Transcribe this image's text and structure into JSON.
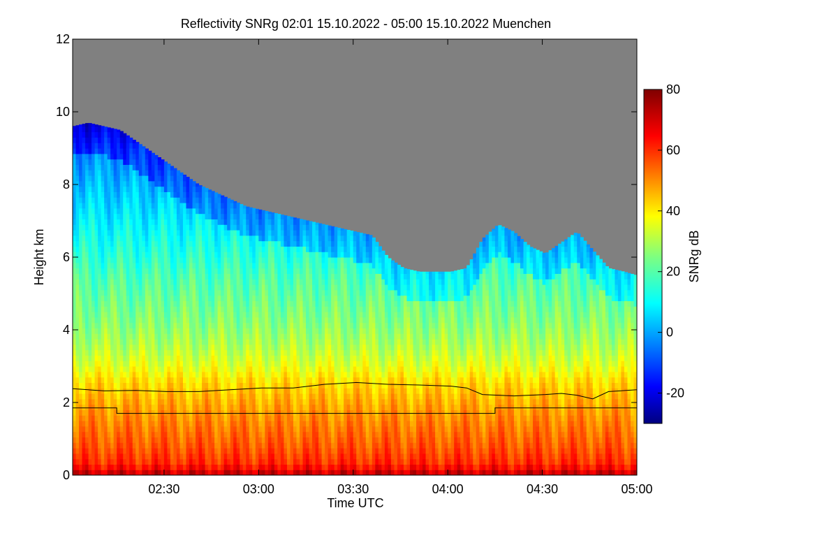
{
  "chart_data": {
    "type": "heatmap",
    "title": "Reflectivity SNRg   02:01 15.10.2022 - 05:00 15.10.2022 Muenchen",
    "xlabel": "Time UTC",
    "ylabel": "Height km",
    "xlim": [
      "02:01",
      "05:00"
    ],
    "ylim": [
      0,
      12
    ],
    "x_ticks": [
      "02:30",
      "03:00",
      "03:30",
      "04:00",
      "04:30",
      "05:00"
    ],
    "x_tick_minutes": [
      29,
      59,
      89,
      119,
      149,
      179
    ],
    "y_ticks": [
      "0",
      "2",
      "4",
      "6",
      "8",
      "10",
      "12"
    ],
    "y_tick_values": [
      0,
      2,
      4,
      6,
      8,
      10,
      12
    ],
    "background_color": "#808080",
    "colorbar": {
      "label": "SNRg dB",
      "range": [
        -30,
        80
      ],
      "ticks": [
        "-20",
        "0",
        "20",
        "40",
        "60",
        "80"
      ],
      "tick_values": [
        -20,
        0,
        20,
        40,
        60,
        80
      ],
      "colormap": "jet"
    },
    "echo_top_km": {
      "time_min": [
        0,
        5,
        10,
        15,
        20,
        25,
        30,
        35,
        40,
        45,
        50,
        55,
        60,
        65,
        70,
        75,
        80,
        85,
        90,
        95,
        100,
        105,
        110,
        115,
        120,
        125,
        130,
        135,
        140,
        145,
        150,
        155,
        160,
        165,
        170,
        175,
        179
      ],
      "height": [
        9.6,
        9.7,
        9.6,
        9.5,
        9.2,
        8.9,
        8.6,
        8.3,
        8.0,
        7.8,
        7.6,
        7.4,
        7.3,
        7.2,
        7.1,
        7.0,
        6.9,
        6.8,
        6.7,
        6.6,
        6.0,
        5.7,
        5.6,
        5.6,
        5.6,
        5.7,
        6.5,
        6.9,
        6.7,
        6.3,
        6.1,
        6.4,
        6.7,
        6.2,
        5.7,
        5.6,
        5.5
      ]
    },
    "reflectivity_profile": {
      "height_km": [
        0,
        0.3,
        0.8,
        1.5,
        2.2,
        2.6,
        3.0,
        3.6,
        4.2,
        4.8,
        5.4,
        6.0,
        7.0,
        8.0,
        9.0,
        9.7
      ],
      "snrg_db": [
        74,
        62,
        57,
        52,
        46,
        42,
        36,
        30,
        26,
        23,
        20,
        16,
        10,
        4,
        -2,
        -10
      ]
    },
    "lines": [
      {
        "time_min": [
          0,
          10,
          20,
          30,
          40,
          50,
          60,
          70,
          80,
          90,
          100,
          110,
          120,
          125,
          130,
          140,
          145,
          150,
          155,
          160,
          165,
          170,
          179
        ],
        "height_km": [
          2.38,
          2.32,
          2.33,
          2.3,
          2.3,
          2.35,
          2.4,
          2.4,
          2.5,
          2.55,
          2.5,
          2.48,
          2.45,
          2.4,
          2.22,
          2.18,
          2.2,
          2.22,
          2.25,
          2.2,
          2.1,
          2.3,
          2.35
        ]
      },
      {
        "time_min": [
          0,
          14,
          14,
          134,
          134,
          179
        ],
        "height_km": [
          1.85,
          1.85,
          1.7,
          1.7,
          1.85,
          1.85
        ]
      }
    ]
  }
}
